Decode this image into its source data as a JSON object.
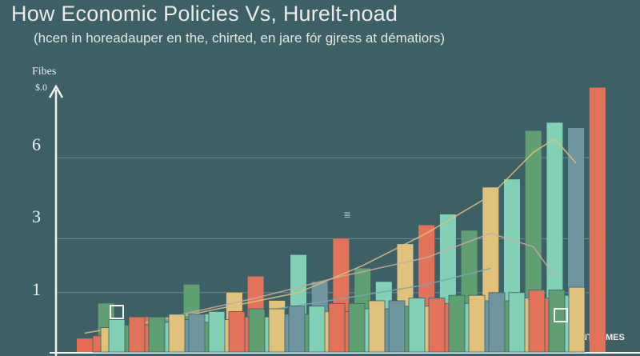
{
  "chart_data": {
    "type": "bar",
    "title": "How Economic Policies Vs, Hurelt-noad",
    "subtitle": "(hcen in horeadauper en the, chirted, en jare fór gjress at dématiors)",
    "ylabel": "Fibes",
    "ytick_top": "$.0",
    "xlabel": "INTOAMES",
    "annotation": "||||",
    "y_ticks": [
      {
        "label": "1",
        "value": 1
      },
      {
        "label": "3",
        "value": 3
      },
      {
        "label": "6",
        "value": 6
      }
    ],
    "ylim": [
      -1.2,
      9.0
    ],
    "grid": true,
    "colors": [
      "#e2735a",
      "#e0c27c",
      "#5f9f72",
      "#82d0b6",
      "#6f96a0"
    ],
    "tall_bars": {
      "colors": [
        5,
        2,
        5,
        0,
        4,
        2,
        3,
        1,
        0,
        1,
        3,
        4,
        0,
        2,
        3,
        1,
        0,
        3,
        2,
        1,
        3,
        2,
        3,
        4,
        0
      ],
      "values": [
        -0.7,
        0.6,
        -0.3,
        0.1,
        0.1,
        1.3,
        0.2,
        1.0,
        1.6,
        0.7,
        2.4,
        1.4,
        3.0,
        1.9,
        1.4,
        2.8,
        3.5,
        3.9,
        3.3,
        4.9,
        5.2,
        7.0,
        7.3,
        7.1,
        8.6
      ]
    },
    "front_rows": [
      {
        "colors": [
          0,
          4,
          3,
          2,
          1,
          0,
          4,
          3,
          2,
          1,
          0,
          4,
          3,
          2,
          1,
          0,
          4,
          3,
          2,
          1,
          0,
          4,
          3,
          2
        ],
        "values": [
          -0.6,
          -0.4,
          -0.3,
          -0.2,
          -0.3,
          -0.2,
          -0.1,
          0.0,
          -0.1,
          0.1,
          0.0,
          0.2,
          0.1,
          0.2,
          0.3,
          0.2,
          0.3,
          0.4,
          0.3,
          0.5,
          0.4,
          0.5,
          0.6,
          0.7
        ]
      },
      {
        "colors": [
          1,
          2,
          0,
          3,
          4,
          2,
          1,
          0,
          3,
          4,
          2,
          1,
          0,
          3,
          4,
          2,
          1,
          0,
          3,
          4,
          2,
          1,
          0,
          3
        ],
        "values": [
          -0.3,
          -0.2,
          -0.2,
          -0.1,
          0.0,
          -0.1,
          0.0,
          0.1,
          0.1,
          0.2,
          0.2,
          0.3,
          0.3,
          0.4,
          0.4,
          0.5,
          0.5,
          0.6,
          0.6,
          0.7,
          0.7,
          0.8,
          0.8,
          0.9
        ]
      },
      {
        "colors": [
          3,
          0,
          2,
          1,
          4,
          3,
          0,
          2,
          1,
          4,
          3,
          0,
          2,
          1,
          4,
          3,
          0,
          2,
          1,
          4,
          3,
          0,
          2,
          1
        ],
        "values": [
          0.0,
          0.1,
          0.1,
          0.2,
          0.2,
          0.3,
          0.3,
          0.4,
          0.4,
          0.5,
          0.5,
          0.6,
          0.6,
          0.7,
          0.7,
          0.8,
          0.8,
          0.9,
          0.9,
          1.0,
          1.0,
          1.1,
          1.1,
          1.2
        ]
      }
    ],
    "trend_lines": [
      {
        "color": "#e0c27c",
        "points": [
          [
            0,
            -0.5
          ],
          [
            5,
            0.2
          ],
          [
            10,
            1.0
          ],
          [
            13,
            2.0
          ],
          [
            16,
            3.2
          ],
          [
            19,
            4.6
          ],
          [
            21,
            6.2
          ],
          [
            22,
            6.7
          ],
          [
            23,
            5.8
          ]
        ]
      },
      {
        "color": "#c9aaa0",
        "points": [
          [
            4,
            0.1
          ],
          [
            8,
            0.8
          ],
          [
            12,
            1.6
          ],
          [
            16,
            2.3
          ],
          [
            19,
            3.2
          ],
          [
            21,
            2.7
          ],
          [
            22,
            1.6
          ]
        ]
      },
      {
        "color": "#7aa6a8",
        "points": [
          [
            9,
            0.4
          ],
          [
            13,
            0.9
          ],
          [
            16,
            1.3
          ],
          [
            19,
            1.9
          ]
        ]
      }
    ]
  }
}
